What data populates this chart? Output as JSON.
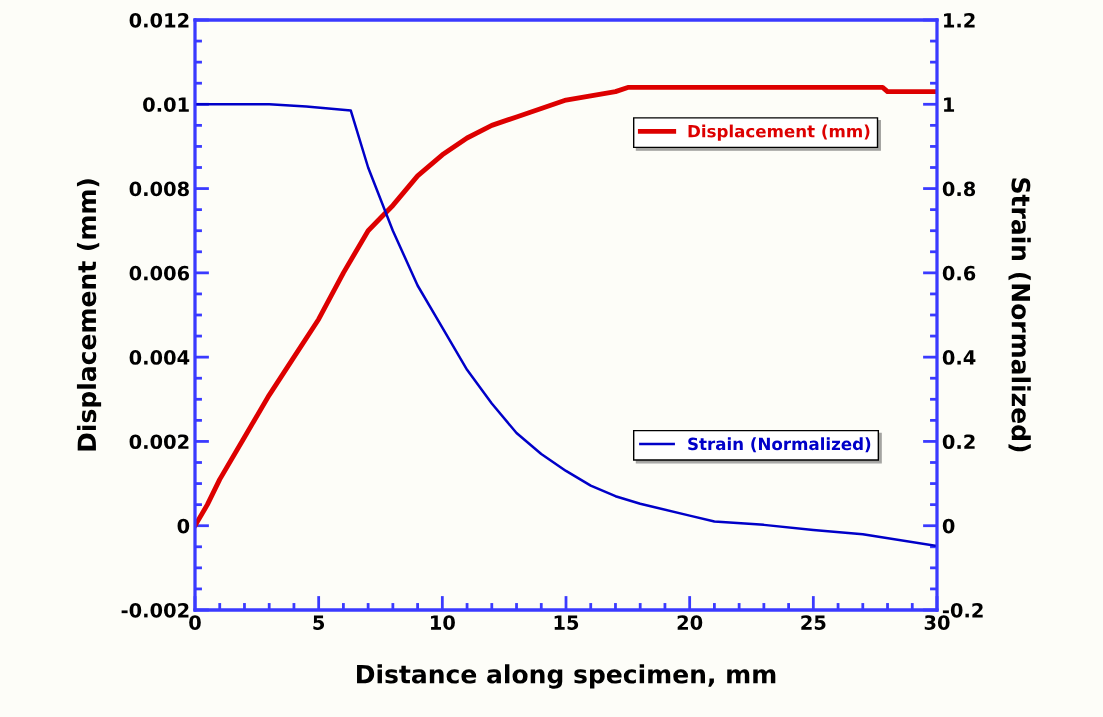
{
  "chart_data": {
    "type": "line",
    "xlabel": "Distance along specimen, mm",
    "ylabel": "Displacement (mm)",
    "y2label": "Strain (Normalized)",
    "xlim": [
      0,
      30
    ],
    "xticks": [
      0,
      5,
      10,
      15,
      20,
      25,
      30
    ],
    "ylim": [
      -0.002,
      0.012
    ],
    "yticks": [
      -0.002,
      0,
      0.002,
      0.004,
      0.006,
      0.008,
      0.01,
      0.012
    ],
    "y2lim": [
      -0.2,
      1.2
    ],
    "y2ticks": [
      -0.2,
      0,
      0.2,
      0.4,
      0.6,
      0.8,
      1,
      1.2
    ],
    "grid": false,
    "legend": "right",
    "line_style": "solid",
    "marker": "none",
    "series": [
      {
        "name": "Displacement (mm)",
        "color": "#dd0000",
        "axis": "y",
        "x": [
          0,
          0.5,
          1,
          2,
          3,
          4,
          5,
          6,
          7,
          7.5,
          8,
          9,
          10,
          11,
          12,
          13,
          14,
          15,
          16,
          17,
          17.5,
          20,
          25,
          27.8,
          28,
          30
        ],
        "values": [
          0,
          0.0005,
          0.0011,
          0.0021,
          0.0031,
          0.004,
          0.0049,
          0.006,
          0.007,
          0.0073,
          0.0076,
          0.0083,
          0.0088,
          0.0092,
          0.0095,
          0.0097,
          0.0099,
          0.0101,
          0.0102,
          0.0103,
          0.0104,
          0.0104,
          0.0104,
          0.0104,
          0.0103,
          0.0103
        ]
      },
      {
        "name": "Strain (Normalized)",
        "color": "#0000c8",
        "axis": "y2",
        "x": [
          0,
          3,
          4.5,
          6.3,
          7,
          8,
          9,
          10,
          11,
          12,
          13,
          14,
          15,
          16,
          17,
          18,
          20,
          21,
          23,
          25,
          27,
          30
        ],
        "values": [
          1,
          1,
          0.995,
          0.985,
          0.85,
          0.7,
          0.57,
          0.47,
          0.37,
          0.29,
          0.22,
          0.17,
          0.13,
          0.095,
          0.07,
          0.052,
          0.024,
          0.01,
          0.002,
          -0.01,
          -0.02,
          -0.048
        ]
      }
    ]
  }
}
